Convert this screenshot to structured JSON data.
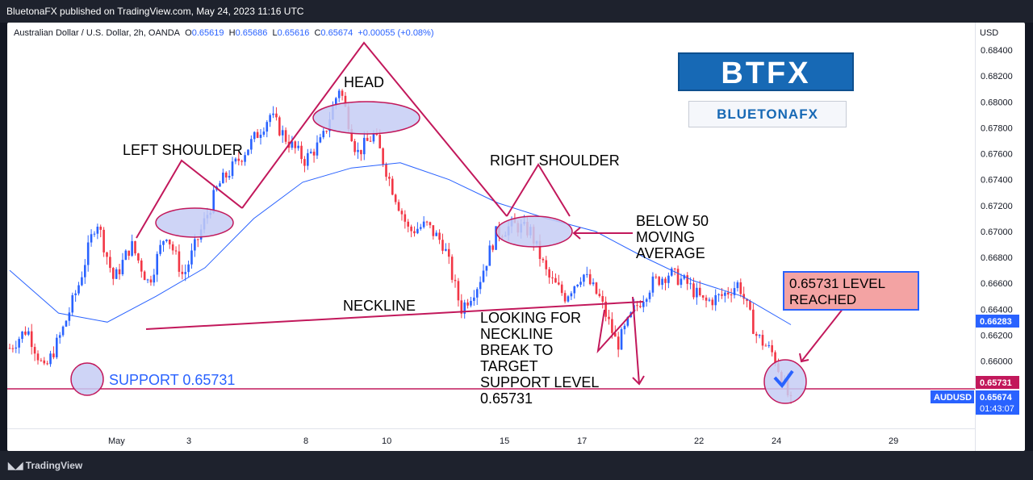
{
  "header": {
    "publisher": "BluetonaFX published on TradingView.com, May 24, 2023 11:16 UTC"
  },
  "symbol_line": {
    "name": "Australian Dollar / U.S. Dollar, 2h, OANDA",
    "o_label": "O",
    "o": "0.65619",
    "h_label": "H",
    "h": "0.65686",
    "l_label": "L",
    "l": "0.65616",
    "c_label": "C",
    "c": "0.65674",
    "change": "+0.00055 (+0.08%)"
  },
  "branding": {
    "logo_main": "BTFX",
    "logo_sub": "BLUETONAFX"
  },
  "footer": {
    "tradingview": "TradingView"
  },
  "annotations": {
    "left_shoulder": "LEFT SHOULDER",
    "head": "HEAD",
    "right_shoulder": "RIGHT SHOULDER",
    "neckline": "NECKLINE",
    "below_ma": [
      "BELOW 50",
      "MOVING",
      "AVERAGE"
    ],
    "looking_for": [
      "LOOKING FOR",
      "NECKLINE",
      "BREAK TO",
      "TARGET",
      "SUPPORT LEVEL",
      "0.65731"
    ],
    "support": "SUPPORT 0.65731",
    "level_reached": [
      "0.65731 LEVEL",
      "REACHED"
    ]
  },
  "colors": {
    "up": "#2962ff",
    "down": "#f23645",
    "ma": "#2962ff",
    "pattern": "#c2185b",
    "support_label": "#2962ff",
    "ellipse_fill": "#c5cdf5"
  },
  "chart_data": {
    "type": "candlestick",
    "title": "Australian Dollar / U.S. Dollar, 2h, OANDA",
    "currency": "USD",
    "ylim": [
      0.6548,
      0.686
    ],
    "y_ticks": [
      "0.68400",
      "0.68200",
      "0.68000",
      "0.67800",
      "0.67600",
      "0.67400",
      "0.67200",
      "0.67000",
      "0.66800",
      "0.66600",
      "0.66400",
      "0.66200",
      "0.66000"
    ],
    "x_ticks": [
      "May",
      "3",
      "8",
      "10",
      "15",
      "17",
      "22",
      "24",
      "29"
    ],
    "price_path": [
      {
        "date": "Apr 28",
        "price": 0.661
      },
      {
        "date": "Apr 30",
        "price": 0.6625
      },
      {
        "date": "May 1",
        "price": 0.6592
      },
      {
        "date": "May 1",
        "price": 0.6622
      },
      {
        "date": "May 2",
        "price": 0.666
      },
      {
        "date": "May 2",
        "price": 0.671
      },
      {
        "date": "May 3",
        "price": 0.6662
      },
      {
        "date": "May 3",
        "price": 0.669
      },
      {
        "date": "May 4",
        "price": 0.666
      },
      {
        "date": "May 4",
        "price": 0.67
      },
      {
        "date": "May 5",
        "price": 0.6665
      },
      {
        "date": "May 5",
        "price": 0.67
      },
      {
        "date": "May 6",
        "price": 0.6735
      },
      {
        "date": "May 7",
        "price": 0.6752
      },
      {
        "date": "May 8",
        "price": 0.677
      },
      {
        "date": "May 8",
        "price": 0.679
      },
      {
        "date": "May 9",
        "price": 0.677
      },
      {
        "date": "May 9",
        "price": 0.6755
      },
      {
        "date": "May 10",
        "price": 0.677
      },
      {
        "date": "May 10",
        "price": 0.6812
      },
      {
        "date": "May 11",
        "price": 0.676
      },
      {
        "date": "May 11",
        "price": 0.6775
      },
      {
        "date": "May 12",
        "price": 0.6735
      },
      {
        "date": "May 12",
        "price": 0.67
      },
      {
        "date": "May 13",
        "price": 0.6705
      },
      {
        "date": "May 14",
        "price": 0.669
      },
      {
        "date": "May 14",
        "price": 0.664
      },
      {
        "date": "May 15",
        "price": 0.666
      },
      {
        "date": "May 15",
        "price": 0.6698
      },
      {
        "date": "May 16",
        "price": 0.6705
      },
      {
        "date": "May 16",
        "price": 0.67
      },
      {
        "date": "May 17",
        "price": 0.6665
      },
      {
        "date": "May 17",
        "price": 0.665
      },
      {
        "date": "May 18",
        "price": 0.6668
      },
      {
        "date": "May 18",
        "price": 0.6648
      },
      {
        "date": "May 19",
        "price": 0.6612
      },
      {
        "date": "May 19",
        "price": 0.664
      },
      {
        "date": "May 20",
        "price": 0.666
      },
      {
        "date": "May 21",
        "price": 0.6668
      },
      {
        "date": "May 22",
        "price": 0.666
      },
      {
        "date": "May 22",
        "price": 0.6645
      },
      {
        "date": "May 23",
        "price": 0.665
      },
      {
        "date": "May 23",
        "price": 0.666
      },
      {
        "date": "May 24",
        "price": 0.662
      },
      {
        "date": "May 24",
        "price": 0.6605
      },
      {
        "date": "May 24",
        "price": 0.6567
      }
    ],
    "moving_average": {
      "name": "50 MA",
      "points": [
        {
          "date": "Apr 28",
          "value": 0.667
        },
        {
          "date": "May 1",
          "value": 0.6637
        },
        {
          "date": "May 2",
          "value": 0.663
        },
        {
          "date": "May 3",
          "value": 0.665
        },
        {
          "date": "May 5",
          "value": 0.6672
        },
        {
          "date": "May 7",
          "value": 0.671
        },
        {
          "date": "May 9",
          "value": 0.6738
        },
        {
          "date": "May 11",
          "value": 0.6749
        },
        {
          "date": "May 12",
          "value": 0.6753
        },
        {
          "date": "May 13",
          "value": 0.674
        },
        {
          "date": "May 14",
          "value": 0.6722
        },
        {
          "date": "May 15",
          "value": 0.671
        },
        {
          "date": "May 17",
          "value": 0.67
        },
        {
          "date": "May 19",
          "value": 0.668
        },
        {
          "date": "May 22",
          "value": 0.6662
        },
        {
          "date": "May 23",
          "value": 0.665
        },
        {
          "date": "May 24",
          "value": 0.6628
        }
      ]
    },
    "support_level": 0.65731,
    "price_labels": {
      "ma_value": "0.66283",
      "support_value": "0.65731",
      "symbol": "AUDUSD",
      "current": "0.65674",
      "countdown": "01:43:07"
    }
  }
}
